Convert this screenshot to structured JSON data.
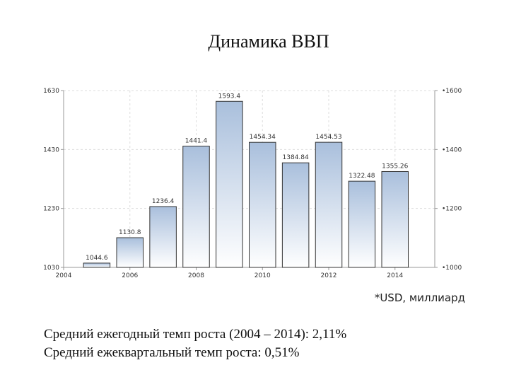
{
  "title": "Динамика ВВП",
  "note": "*USD, миллиард",
  "stats": [
    "Средний ежегодный темп роста (2004 – 2014): 2,11%",
    "Средний ежеквартальный темп роста: 0,51%"
  ],
  "chart_data": {
    "type": "bar",
    "title": "",
    "xlabel": "",
    "ylabel": "",
    "x": [
      2005,
      2006,
      2007,
      2008,
      2009,
      2010,
      2011,
      2012,
      2013,
      2014
    ],
    "values": [
      1044.6,
      1130.8,
      1236.4,
      1441.4,
      1593.4,
      1454.34,
      1384.84,
      1454.53,
      1322.48,
      1355.26
    ],
    "value_labels": [
      "1044.6",
      "1130.8",
      "1236.4",
      "1441.4",
      "1593.4",
      "1454.34",
      "1384.84",
      "1454.53",
      "1322.48",
      "1355.26"
    ],
    "xlim": [
      2004,
      2015.2
    ],
    "x_ticks": [
      "2004",
      "2006",
      "2008",
      "2010",
      "2012",
      "2014"
    ],
    "ylim": [
      1030,
      1630
    ],
    "y_ticks_left": [
      "1030",
      "1230",
      "1430",
      "1630"
    ],
    "y_ticks_right": [
      "1000",
      "1200",
      "1400",
      "1600"
    ],
    "grid": true,
    "colors": {
      "bar_top": "#a9bfdc",
      "bar_bottom": "#ffffff",
      "bar_edge": "#333333",
      "grid": "#dddddd",
      "axis": "#999999",
      "tick_text": "#333333"
    }
  }
}
